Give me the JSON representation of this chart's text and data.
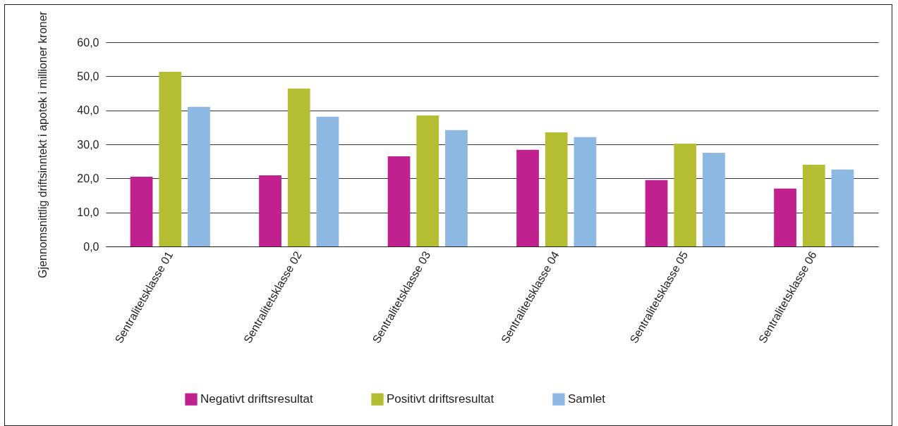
{
  "chart_data": {
    "type": "bar",
    "ylabel": "Gjennomsnittlig driftsinntekt i apotek i millioner kroner",
    "categories": [
      "Sentralitetsklasse 01",
      "Sentralitetsklasse 02",
      "Sentralitetsklasse 03",
      "Sentralitetsklasse 04",
      "Sentralitetsklasse 05",
      "Sentralitetsklasse 06"
    ],
    "series": [
      {
        "name": "Negativt driftsresultat",
        "color": "#c0218f",
        "values": [
          20.5,
          20.9,
          26.5,
          28.4,
          19.5,
          17.0
        ]
      },
      {
        "name": "Positivt driftsresultat",
        "color": "#b5bd33",
        "values": [
          51.3,
          46.4,
          38.5,
          33.5,
          30.2,
          24.0
        ]
      },
      {
        "name": "Samlet",
        "color": "#8db8e2",
        "values": [
          41.0,
          38.1,
          34.2,
          32.1,
          27.5,
          22.6
        ]
      }
    ],
    "ylim": [
      0,
      60
    ],
    "yticks": [
      {
        "value": 0,
        "label": "0,0"
      },
      {
        "value": 10,
        "label": "10,0"
      },
      {
        "value": 20,
        "label": "20,0"
      },
      {
        "value": 30,
        "label": "30,0"
      },
      {
        "value": 40,
        "label": "40,0"
      },
      {
        "value": 50,
        "label": "50,0"
      },
      {
        "value": 60,
        "label": "60,0"
      }
    ],
    "grid": "y",
    "legend": "bottom"
  }
}
